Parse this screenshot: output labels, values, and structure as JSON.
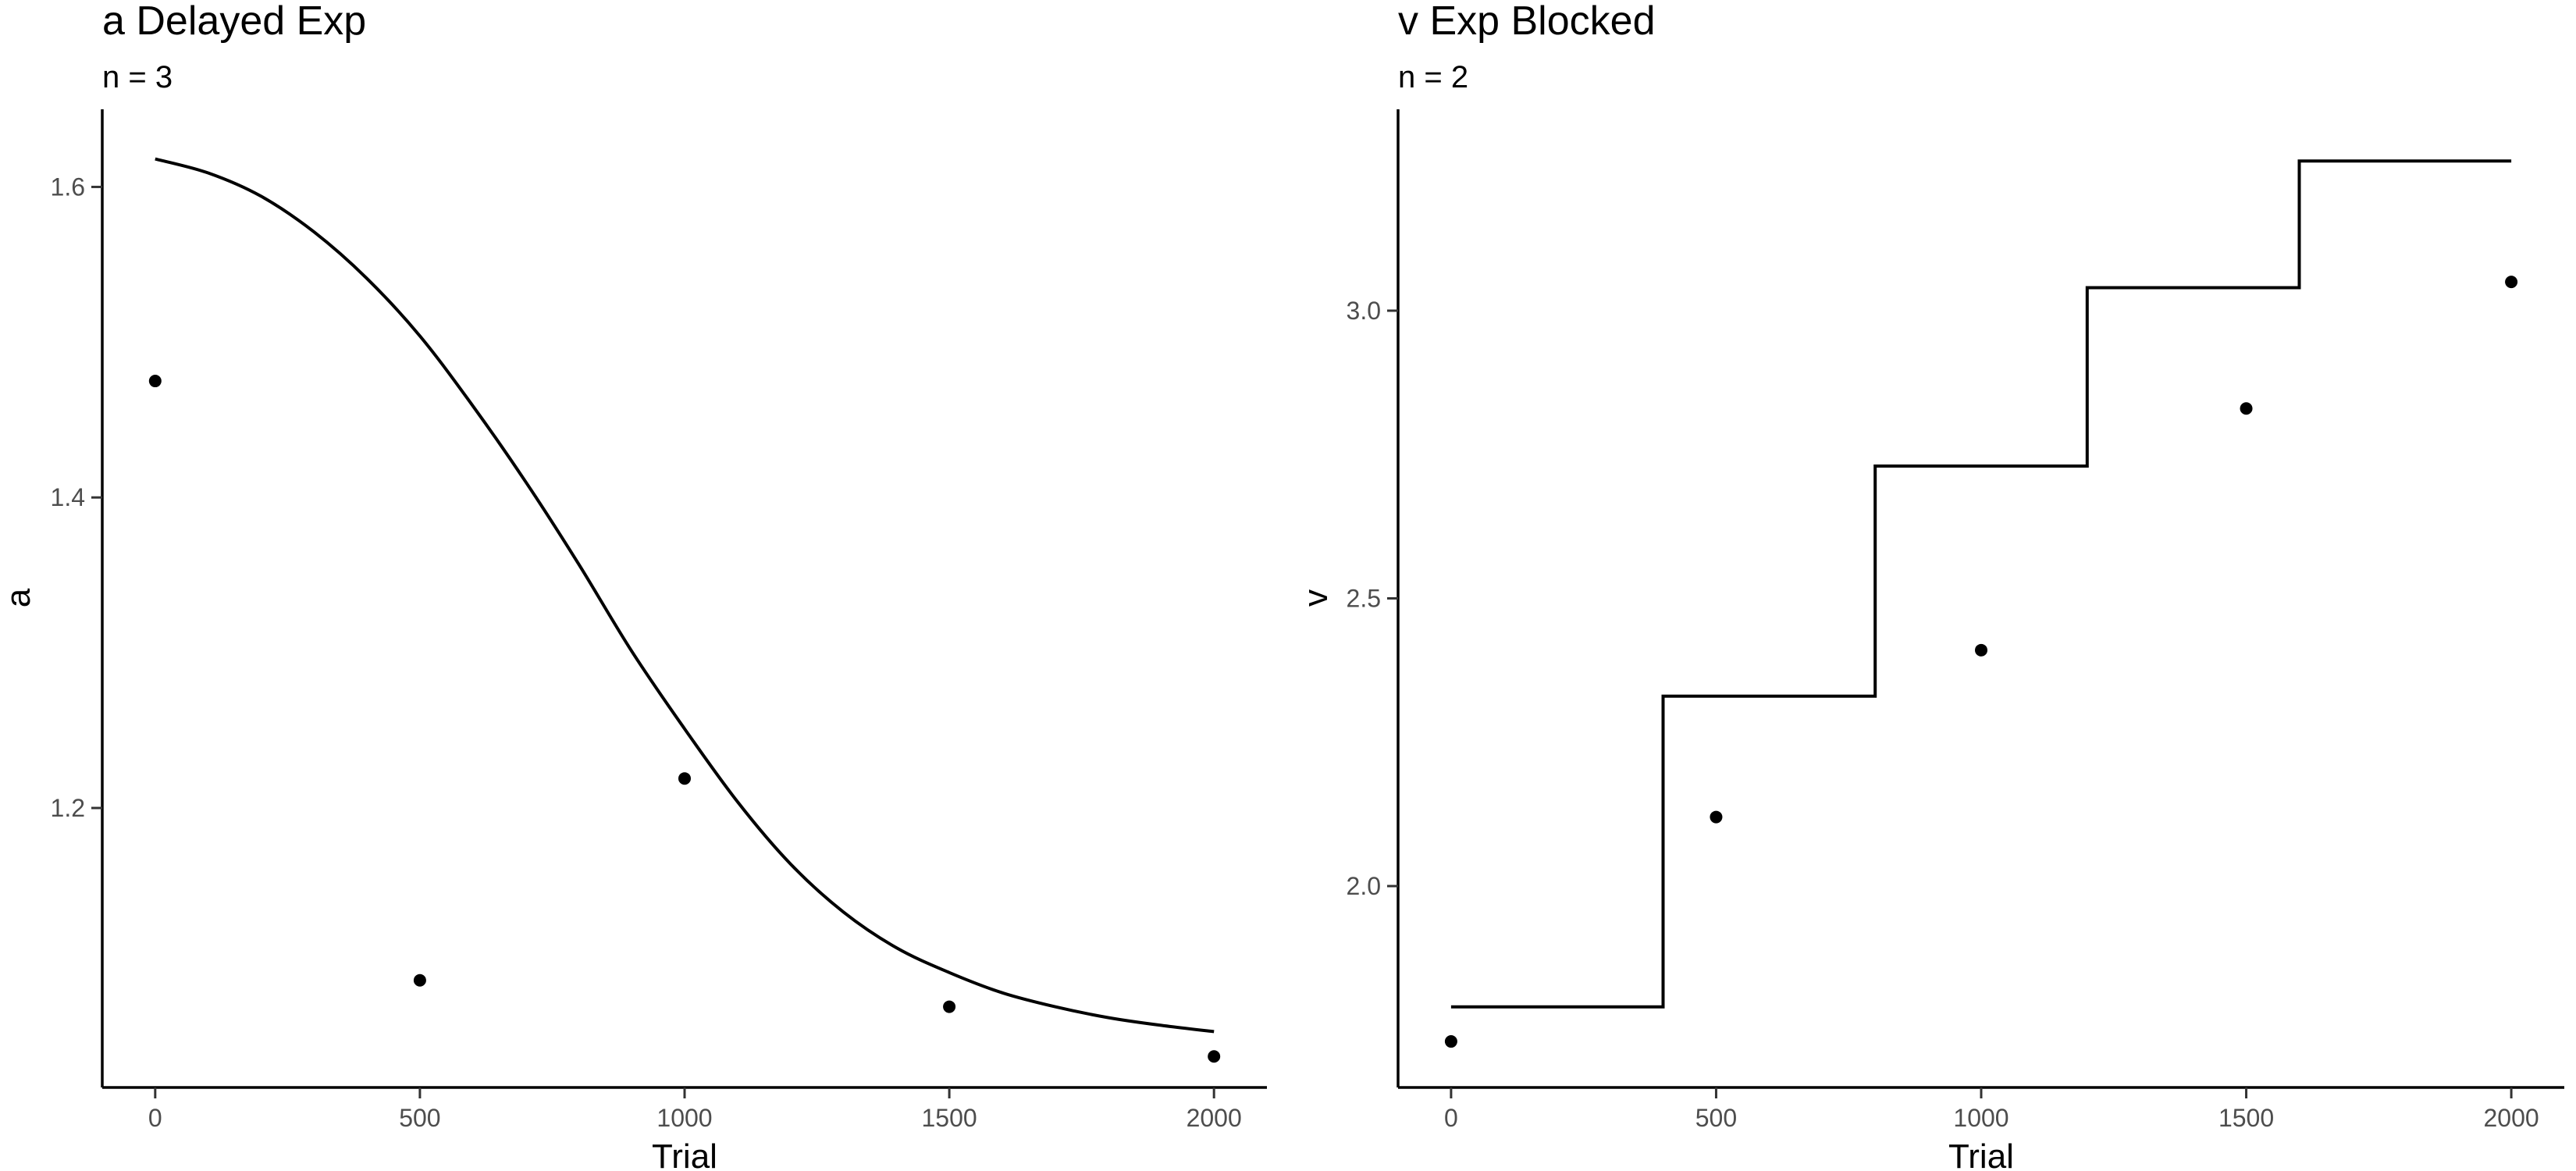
{
  "chart_data": [
    {
      "type": "line",
      "title": "a Delayed Exp",
      "subtitle": "n = 3",
      "xlabel": "Trial",
      "ylabel": "a",
      "xlim": [
        -100,
        2100
      ],
      "ylim": [
        1.02,
        1.65
      ],
      "xticks": [
        0,
        500,
        1000,
        1500,
        2000
      ],
      "xtick_labels": [
        "0",
        "500",
        "1000",
        "1500",
        "2000"
      ],
      "yticks": [
        1.2,
        1.4,
        1.6
      ],
      "ytick_labels": [
        "1.2",
        "1.4",
        "1.6"
      ],
      "grid": false,
      "line": {
        "kind": "smooth",
        "x": [
          0,
          100,
          200,
          300,
          400,
          500,
          600,
          700,
          800,
          900,
          1000,
          1100,
          1200,
          1300,
          1400,
          1500,
          1600,
          1700,
          1800,
          1900,
          2000
        ],
        "y": [
          1.618,
          1.609,
          1.594,
          1.571,
          1.541,
          1.504,
          1.459,
          1.41,
          1.357,
          1.301,
          1.251,
          1.204,
          1.164,
          1.133,
          1.11,
          1.094,
          1.081,
          1.072,
          1.065,
          1.06,
          1.056
        ]
      },
      "points": {
        "x": [
          0,
          500,
          1000,
          1500,
          2000
        ],
        "y": [
          1.475,
          1.089,
          1.219,
          1.072,
          1.04
        ]
      }
    },
    {
      "type": "line",
      "title": "v Exp Blocked",
      "subtitle": "n = 2",
      "xlabel": "Trial",
      "ylabel": "v",
      "xlim": [
        -100,
        2100
      ],
      "ylim": [
        1.65,
        3.35
      ],
      "xticks": [
        0,
        500,
        1000,
        1500,
        2000
      ],
      "xtick_labels": [
        "0",
        "500",
        "1000",
        "1500",
        "2000"
      ],
      "yticks": [
        2.0,
        2.5,
        3.0
      ],
      "ytick_labels": [
        "2.0",
        "2.5",
        "3.0"
      ],
      "grid": false,
      "line": {
        "kind": "step",
        "x": [
          0,
          400,
          400,
          800,
          800,
          1200,
          1200,
          1600,
          1600,
          2000
        ],
        "y": [
          1.79,
          1.79,
          2.33,
          2.33,
          2.73,
          2.73,
          3.04,
          3.04,
          3.26,
          3.26
        ]
      },
      "points": {
        "x": [
          0,
          500,
          1000,
          1500,
          2000
        ],
        "y": [
          1.73,
          2.12,
          2.41,
          2.83,
          3.05
        ]
      }
    }
  ]
}
